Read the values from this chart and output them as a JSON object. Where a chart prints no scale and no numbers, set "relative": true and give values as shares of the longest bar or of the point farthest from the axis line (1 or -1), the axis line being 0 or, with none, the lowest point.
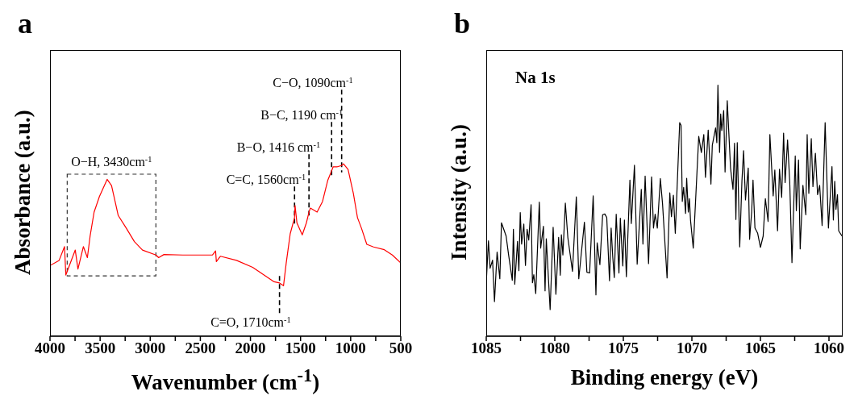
{
  "chart_data": [
    {
      "type": "line",
      "title": "a",
      "xlabel": "Wavenumber (cm$^{-1}$)",
      "ylabel": "Absorbance (a.u.)",
      "relative": true,
      "xlim": [
        4000,
        500
      ],
      "xticks": [
        4000,
        {
          "value": 3750,
          "label": null
        },
        3500,
        {
          "value": 3250,
          "label": null
        },
        3000,
        {
          "value": 2750,
          "label": null
        },
        2500,
        {
          "value": 2250,
          "label": null
        },
        2000,
        {
          "value": 1750,
          "label": null
        },
        1500,
        {
          "value": 1250,
          "label": null
        },
        1000,
        {
          "value": 750,
          "label": null
        },
        500
      ],
      "x": [
        4000,
        3909,
        3855,
        3842,
        3748,
        3721,
        3667,
        3627,
        3600,
        3560,
        3507,
        3430,
        3386,
        3319,
        3238,
        3158,
        3077,
        2943,
        2916,
        2863,
        2675,
        2380,
        2348,
        2340,
        2300,
        2139,
        1978,
        1844,
        1764,
        1710,
        1670,
        1643,
        1603,
        1560,
        1555,
        1536,
        1483,
        1442,
        1416,
        1402,
        1335,
        1281,
        1228,
        1190,
        1174,
        1133,
        1090,
        1072,
        1026,
        973,
        932,
        892,
        839,
        772,
        664,
        584,
        500
      ],
      "series": [
        {
          "color": "#ff0000",
          "values": [
            0.41,
            0.44,
            0.52,
            0.355,
            0.5,
            0.39,
            0.52,
            0.456,
            0.58,
            0.72,
            0.81,
            0.91,
            0.874,
            0.7,
            0.626,
            0.549,
            0.5,
            0.471,
            0.456,
            0.474,
            0.471,
            0.471,
            0.495,
            0.433,
            0.464,
            0.44,
            0.4,
            0.347,
            0.316,
            0.309,
            0.293,
            0.425,
            0.595,
            0.688,
            0.758,
            0.657,
            0.588,
            0.657,
            0.72,
            0.743,
            0.72,
            0.781,
            0.905,
            0.96,
            0.983,
            0.983,
            0.99,
            1.0,
            0.967,
            0.828,
            0.688,
            0.626,
            0.533,
            0.518,
            0.502,
            0.471,
            0.425
          ]
        }
      ],
      "annotations": [
        {
          "text": "O−H, 3430cm$^{-1}$",
          "x": 3430,
          "y": 0.91
        },
        {
          "text": "C=C, 1560cm$^{-1}$",
          "x": 1560,
          "y": 0.688
        },
        {
          "text": "B−O, 1416 cm$^{-1}$",
          "x": 1416,
          "y": 0.72
        },
        {
          "text": "B−C, 1190 cm$^{-1}$",
          "x": 1190,
          "y": 0.96
        },
        {
          "text": "C−O, 1090cm$^{-1}$",
          "x": 1090,
          "y": 0.99
        },
        {
          "text": "C=O, 1710cm$^{-1}$",
          "x": 1710,
          "y": 0.309
        }
      ]
    },
    {
      "type": "line",
      "title": "b",
      "xlabel": "Binding energy (eV)",
      "ylabel": "Intensity (a.u.)",
      "relative": true,
      "xlim": [
        1085,
        1059
      ],
      "xticks": [
        1085,
        {
          "value": 1082.5,
          "label": null
        },
        1080,
        {
          "value": 1077.5,
          "label": null
        },
        1075,
        {
          "value": 1072.5,
          "label": null
        },
        1070,
        {
          "value": 1067.5,
          "label": null
        },
        1065,
        {
          "value": 1062.5,
          "label": null
        },
        1060
      ],
      "annotations": [
        "Na 1s"
      ],
      "x": [
        1085.0,
        1084.84,
        1084.72,
        1084.54,
        1084.4,
        1084.21,
        1084.01,
        1083.89,
        1083.55,
        1083.37,
        1083.1,
        1083.02,
        1082.92,
        1082.72,
        1082.62,
        1082.52,
        1082.42,
        1082.26,
        1082.14,
        1082.02,
        1081.9,
        1081.73,
        1081.63,
        1081.53,
        1081.39,
        1081.13,
        1081.03,
        1080.83,
        1080.71,
        1080.62,
        1080.34,
        1080.12,
        1079.92,
        1079.72,
        1079.6,
        1079.52,
        1079.41,
        1079.23,
        1079.05,
        1078.91,
        1078.71,
        1078.43,
        1078.25,
        1077.84,
        1077.66,
        1077.46,
        1077.2,
        1077.0,
        1076.91,
        1076.71,
        1076.51,
        1076.35,
        1076.21,
        1076.01,
        1075.89,
        1075.77,
        1075.66,
        1075.52,
        1075.32,
        1075.22,
        1075.04,
        1074.92,
        1074.78,
        1074.52,
        1074.42,
        1074.19,
        1073.99,
        1073.69,
        1073.57,
        1073.41,
        1073.16,
        1072.94,
        1072.8,
        1072.68,
        1072.52,
        1072.3,
        1072.14,
        1071.81,
        1071.61,
        1071.49,
        1071.35,
        1071.21,
        1070.89,
        1070.79,
        1070.7,
        1070.6,
        1070.46,
        1070.38,
        1070.26,
        1070.18,
        1070.1,
        1069.9,
        1069.5,
        1069.31,
        1069.13,
        1069.01,
        1068.81,
        1068.61,
        1068.51,
        1068.27,
        1068.18,
        1068.1,
        1067.98,
        1067.9,
        1067.82,
        1067.68,
        1067.58,
        1067.42,
        1067.18,
        1067.0,
        1066.89,
        1066.79,
        1066.69,
        1066.51,
        1066.35,
        1066.23,
        1066.09,
        1065.89,
        1065.79,
        1065.64,
        1065.54,
        1065.4,
        1065.2,
        1065.0,
        1064.8,
        1064.64,
        1064.44,
        1064.31,
        1064.07,
        1063.95,
        1063.75,
        1063.61,
        1063.45,
        1063.31,
        1063.2,
        1063.02,
        1062.86,
        1062.7,
        1062.46,
        1062.38,
        1062.22,
        1062.1,
        1061.9,
        1061.69,
        1061.59,
        1061.47,
        1061.29,
        1061.17,
        1060.99,
        1060.83,
        1060.68,
        1060.5,
        1060.28,
        1060.04,
        1059.78,
        1059.68,
        1059.58,
        1059.49,
        1059.38,
        1059.29,
        1059.05
      ],
      "series": [
        {
          "color": "#000000",
          "values": [
            0.213,
            0.38,
            0.271,
            0.303,
            0.138,
            0.335,
            0.229,
            0.452,
            0.399,
            0.324,
            0.223,
            0.426,
            0.207,
            0.378,
            0.261,
            0.493,
            0.367,
            0.447,
            0.282,
            0.426,
            0.383,
            0.524,
            0.213,
            0.245,
            0.17,
            0.534,
            0.351,
            0.438,
            0.181,
            0.388,
            0.106,
            0.434,
            0.167,
            0.394,
            0.243,
            0.404,
            0.324,
            0.53,
            0.394,
            0.338,
            0.259,
            0.555,
            0.229,
            0.454,
            0.255,
            0.252,
            0.559,
            0.165,
            0.372,
            0.285,
            0.484,
            0.487,
            0.473,
            0.221,
            0.431,
            0.314,
            0.234,
            0.486,
            0.252,
            0.47,
            0.28,
            0.463,
            0.237,
            0.622,
            0.449,
            0.681,
            0.287,
            0.585,
            0.367,
            0.638,
            0.289,
            0.635,
            0.431,
            0.486,
            0.431,
            0.628,
            0.527,
            0.232,
            0.571,
            0.476,
            0.562,
            0.41,
            0.851,
            0.84,
            0.537,
            0.593,
            0.489,
            0.629,
            0.495,
            0.548,
            0.463,
            0.351,
            0.796,
            0.732,
            0.803,
            0.633,
            0.821,
            0.606,
            0.761,
            0.83,
            0.771,
            1.0,
            0.732,
            0.885,
            0.819,
            0.899,
            0.654,
            0.938,
            0.67,
            0.585,
            0.769,
            0.465,
            0.771,
            0.356,
            0.617,
            0.739,
            0.543,
            0.67,
            0.386,
            0.495,
            0.622,
            0.431,
            0.41,
            0.354,
            0.399,
            0.548,
            0.457,
            0.803,
            0.559,
            0.662,
            0.42,
            0.665,
            0.553,
            0.809,
            0.612,
            0.782,
            0.612,
            0.293,
            0.718,
            0.5,
            0.702,
            0.348,
            0.601,
            0.484,
            0.803,
            0.569,
            0.787,
            0.596,
            0.729,
            0.564,
            0.601,
            0.441,
            0.851,
            0.431,
            0.676,
            0.463,
            0.617,
            0.505,
            0.564,
            0.42,
            0.399
          ]
        }
      ]
    }
  ]
}
